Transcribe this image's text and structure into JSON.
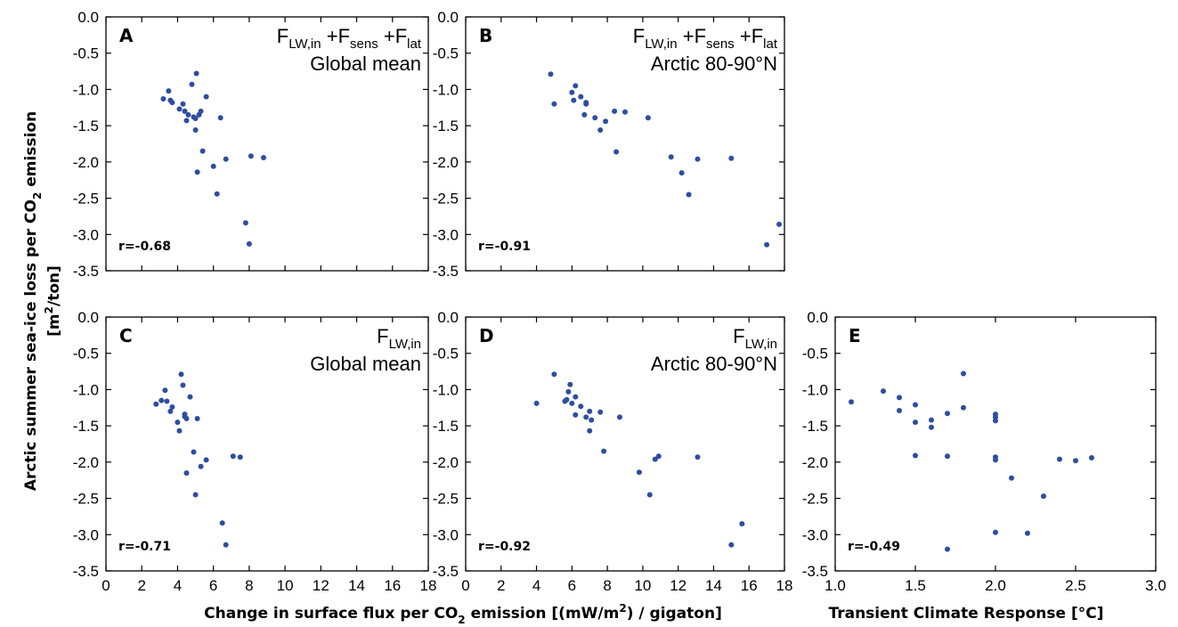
{
  "ylabel": {
    "line1": "Arctic summer sea-ice loss per CO",
    "line1_sub": "2",
    "line1_end": " emission",
    "line2": "[m",
    "line2_sup": "2",
    "line2_end": "/ton]"
  },
  "xlabel_left": {
    "pre": "Change in surface  flux per CO",
    "sub": "2",
    "post": "  emission [(mW/m",
    "sup": "2",
    "end": ") / gigaton]"
  },
  "xlabel_right": "Transient Climate Response [°C]",
  "chart_data": [
    {
      "type": "scatter",
      "panel": "A",
      "annotation": [
        "F_LW,in +F_sens +F_lat",
        "Global mean"
      ],
      "r_label": "r=-0.68",
      "xlim": [
        0,
        18
      ],
      "ylim": [
        -3.5,
        0.0
      ],
      "xticks": [
        0,
        2,
        4,
        6,
        8,
        10,
        12,
        14,
        16,
        18
      ],
      "yticks": [
        0.0,
        -0.5,
        -1.0,
        -1.5,
        -2.0,
        -2.5,
        -3.0,
        -3.5
      ],
      "x": [
        3.2,
        3.5,
        3.6,
        3.7,
        4.1,
        4.3,
        4.4,
        4.5,
        4.6,
        4.8,
        4.9,
        5.0,
        5.0,
        5.05,
        5.1,
        5.2,
        5.3,
        5.4,
        5.6,
        6.0,
        6.2,
        6.4,
        6.7,
        7.8,
        8.0,
        8.1,
        8.8
      ],
      "y": [
        -1.13,
        -1.02,
        -1.15,
        -1.18,
        -1.27,
        -1.2,
        -1.3,
        -1.43,
        -1.35,
        -0.93,
        -1.38,
        -1.56,
        -1.4,
        -0.78,
        -2.14,
        -1.35,
        -1.3,
        -1.85,
        -1.1,
        -2.06,
        -2.44,
        -1.39,
        -1.96,
        -2.84,
        -3.13,
        -1.92,
        -1.94
      ]
    },
    {
      "type": "scatter",
      "panel": "B",
      "annotation": [
        "F_LW,in +F_sens +F_lat",
        "Arctic 80-90°N"
      ],
      "r_label": "r=-0.91",
      "xlim": [
        0,
        18
      ],
      "ylim": [
        -3.5,
        0.0
      ],
      "xticks": [
        0,
        2,
        4,
        6,
        8,
        10,
        12,
        14,
        16,
        18
      ],
      "yticks": [
        0.0,
        -0.5,
        -1.0,
        -1.5,
        -2.0,
        -2.5,
        -3.0,
        -3.5
      ],
      "x": [
        4.8,
        5.0,
        6.0,
        6.1,
        6.2,
        6.5,
        6.7,
        6.8,
        6.8,
        7.3,
        7.6,
        7.9,
        8.4,
        8.5,
        9.0,
        10.3,
        11.6,
        12.2,
        12.6,
        13.1,
        15.0,
        17.0,
        17.7
      ],
      "y": [
        -0.79,
        -1.2,
        -1.04,
        -1.15,
        -0.95,
        -1.1,
        -1.35,
        -1.18,
        -1.2,
        -1.39,
        -1.56,
        -1.44,
        -1.3,
        -1.86,
        -1.31,
        -1.39,
        -1.93,
        -2.15,
        -2.45,
        -1.96,
        -1.95,
        -3.14,
        -2.86
      ]
    },
    {
      "type": "scatter",
      "panel": "C",
      "annotation": [
        "F_LW,in",
        "Global mean"
      ],
      "r_label": "r=-0.71",
      "xlim": [
        0,
        18
      ],
      "ylim": [
        -3.5,
        0.0
      ],
      "xticks": [
        0,
        2,
        4,
        6,
        8,
        10,
        12,
        14,
        16,
        18
      ],
      "yticks": [
        0.0,
        -0.5,
        -1.0,
        -1.5,
        -2.0,
        -2.5,
        -3.0,
        -3.5
      ],
      "x": [
        2.8,
        3.1,
        3.3,
        3.4,
        3.6,
        3.7,
        4.0,
        4.1,
        4.2,
        4.3,
        4.4,
        4.4,
        4.5,
        4.5,
        4.7,
        4.9,
        5.0,
        5.1,
        5.3,
        5.6,
        6.5,
        6.7,
        7.1,
        7.5
      ],
      "y": [
        -1.2,
        -1.15,
        -1.01,
        -1.16,
        -1.3,
        -1.24,
        -1.45,
        -1.57,
        -0.79,
        -0.94,
        -1.37,
        -1.34,
        -2.15,
        -1.4,
        -1.1,
        -1.86,
        -2.45,
        -1.4,
        -2.06,
        -1.97,
        -2.84,
        -3.14,
        -1.92,
        -1.93
      ]
    },
    {
      "type": "scatter",
      "panel": "D",
      "annotation": [
        "F_LW,in",
        "Arctic 80-90°N"
      ],
      "r_label": "r=-0.92",
      "xlim": [
        0,
        18
      ],
      "ylim": [
        -3.5,
        0.0
      ],
      "xticks": [
        0,
        2,
        4,
        6,
        8,
        10,
        12,
        14,
        16,
        18
      ],
      "yticks": [
        0.0,
        -0.5,
        -1.0,
        -1.5,
        -2.0,
        -2.5,
        -3.0,
        -3.5
      ],
      "x": [
        4.0,
        5.0,
        5.6,
        5.7,
        5.8,
        5.9,
        6.0,
        6.2,
        6.2,
        6.5,
        6.8,
        7.0,
        7.0,
        7.1,
        7.6,
        7.8,
        8.7,
        9.8,
        10.4,
        10.7,
        10.9,
        13.1,
        15.0,
        15.6
      ],
      "y": [
        -1.19,
        -0.79,
        -1.16,
        -1.14,
        -1.03,
        -0.93,
        -1.19,
        -1.35,
        -1.1,
        -1.23,
        -1.38,
        -1.57,
        -1.3,
        -1.42,
        -1.31,
        -1.85,
        -1.38,
        -2.14,
        -2.45,
        -1.96,
        -1.92,
        -1.93,
        -3.14,
        -2.85
      ]
    },
    {
      "type": "scatter",
      "panel": "E",
      "annotation": [],
      "r_label": "r=-0.49",
      "xlim": [
        1.0,
        3.0
      ],
      "ylim": [
        -3.5,
        0.0
      ],
      "xticks": [
        "1.0",
        "1.5",
        "2.0",
        "2.5",
        "3.0"
      ],
      "yticks": [
        0.0,
        -0.5,
        -1.0,
        -1.5,
        -2.0,
        -2.5,
        -3.0,
        -3.5
      ],
      "x": [
        1.1,
        1.3,
        1.4,
        1.4,
        1.5,
        1.5,
        1.5,
        1.6,
        1.6,
        1.7,
        1.7,
        1.7,
        1.8,
        1.8,
        2.0,
        2.0,
        2.0,
        2.0,
        2.0,
        2.0,
        2.1,
        2.2,
        2.3,
        2.4,
        2.5,
        2.6
      ],
      "y": [
        -1.17,
        -1.02,
        -1.11,
        -1.29,
        -1.21,
        -1.45,
        -1.91,
        -1.42,
        -1.52,
        -1.33,
        -1.92,
        -3.2,
        -0.78,
        -1.25,
        -1.34,
        -1.38,
        -1.43,
        -1.93,
        -1.97,
        -2.97,
        -2.22,
        -2.98,
        -2.47,
        -1.96,
        -1.98,
        -1.94
      ]
    }
  ]
}
